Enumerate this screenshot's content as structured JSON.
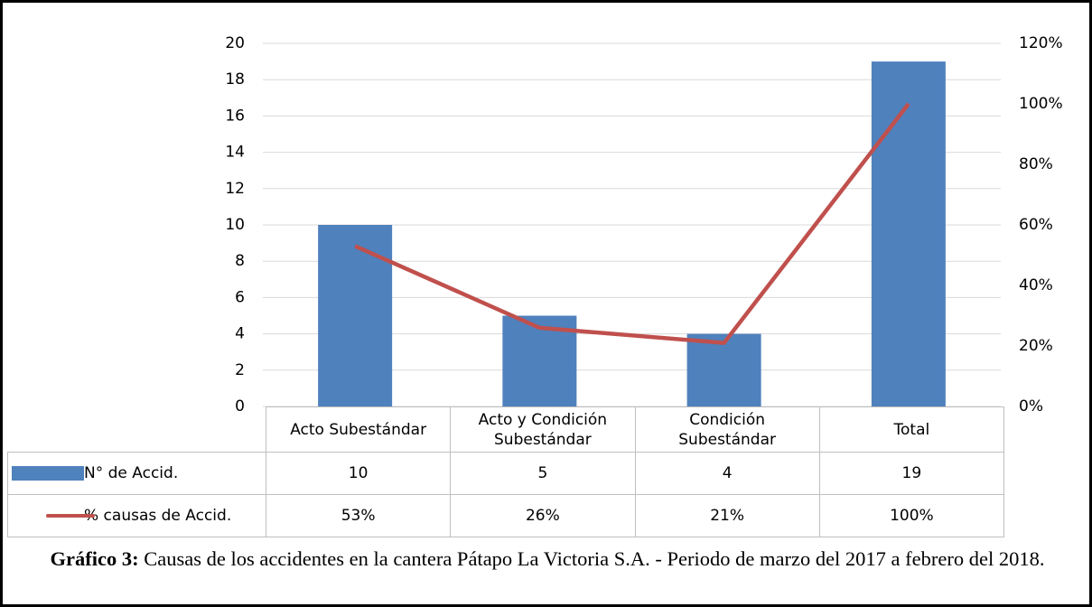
{
  "chart_data": {
    "type": "bar",
    "categories": [
      "Acto Subestándar",
      "Acto y Condición Subestándar",
      "Condición Subestándar",
      "Total"
    ],
    "series": [
      {
        "name": "N° de Accid.",
        "color": "#4f81bd",
        "values": [
          10,
          5,
          4,
          19
        ]
      },
      {
        "name": "% causas de Accid.",
        "color": "#c0504d",
        "type": "line",
        "axis": "y2",
        "values": [
          53,
          26,
          21,
          100
        ],
        "value_labels": [
          "53%",
          "26%",
          "21%",
          "100%"
        ]
      }
    ],
    "ylim": [
      0,
      20
    ],
    "yticks": [
      0,
      2,
      4,
      6,
      8,
      10,
      12,
      14,
      16,
      18,
      20
    ],
    "y2lim": [
      0,
      120
    ],
    "y2ticks": [
      {
        "value": 0,
        "label": "0%"
      },
      {
        "value": 20,
        "label": "20%"
      },
      {
        "value": 40,
        "label": "40%"
      },
      {
        "value": 60,
        "label": "60%"
      },
      {
        "value": 80,
        "label": "80%"
      },
      {
        "value": 100,
        "label": "100%"
      },
      {
        "value": 120,
        "label": "120%"
      }
    ],
    "grid": true,
    "caption_label": "Gráfico 3:",
    "caption": "Causas de los accidentes en la cantera Pátapo La Victoria S.A. - Periodo de marzo del 2017 a febrero del 2018."
  }
}
